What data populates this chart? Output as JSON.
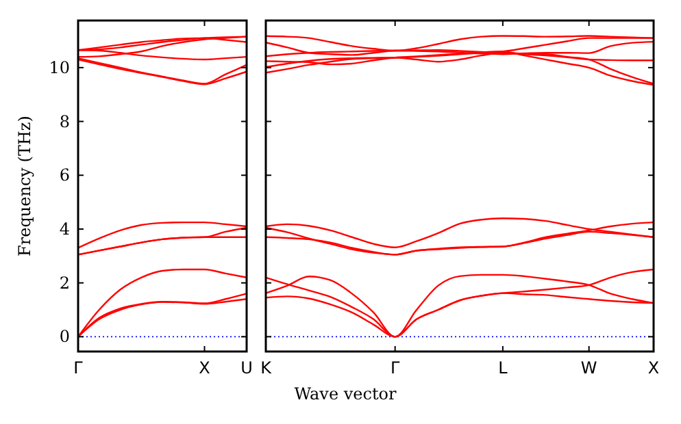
{
  "chart_data": [
    {
      "type": "line",
      "ylabel": "Frequency (THz)",
      "ylim": [
        -0.55,
        11.75
      ],
      "categories": [
        "Γ",
        null,
        null,
        null,
        null,
        null,
        "X",
        null,
        "U"
      ],
      "yticks": [
        0,
        2,
        4,
        6,
        8,
        10
      ],
      "ref_lines": [
        {
          "axis": "y",
          "value": 0,
          "color": "#0000ff",
          "line_style": "dotted"
        }
      ],
      "series": [
        {
          "color": "#ff0000",
          "values": [
            0,
            0.65,
            1.0,
            1.2,
            1.29,
            1.27,
            1.22,
            1.3,
            1.4
          ]
        },
        {
          "color": "#ff0000",
          "values": [
            0,
            0.7,
            1.05,
            1.22,
            1.3,
            1.28,
            1.24,
            1.4,
            1.6
          ]
        },
        {
          "color": "#ff0000",
          "values": [
            0,
            1.0,
            1.75,
            2.2,
            2.45,
            2.5,
            2.5,
            2.35,
            2.2
          ]
        },
        {
          "color": "#ff0000",
          "values": [
            3.05,
            3.2,
            3.35,
            3.5,
            3.62,
            3.68,
            3.7,
            3.7,
            3.7
          ]
        },
        {
          "color": "#ff0000",
          "values": [
            3.05,
            3.2,
            3.35,
            3.5,
            3.62,
            3.68,
            3.7,
            3.9,
            4.05
          ]
        },
        {
          "color": "#ff0000",
          "values": [
            3.3,
            3.65,
            3.95,
            4.15,
            4.23,
            4.25,
            4.25,
            4.18,
            4.1
          ]
        },
        {
          "color": "#ff0000",
          "values": [
            10.3,
            10.12,
            9.95,
            9.8,
            9.65,
            9.5,
            9.38,
            9.6,
            9.85
          ]
        },
        {
          "color": "#ff0000",
          "values": [
            10.35,
            10.17,
            10.0,
            9.82,
            9.67,
            9.52,
            9.4,
            9.75,
            10.1
          ]
        },
        {
          "color": "#ff0000",
          "values": [
            10.65,
            10.63,
            10.55,
            10.45,
            10.38,
            10.33,
            10.3,
            10.35,
            10.4
          ]
        },
        {
          "color": "#ff0000",
          "values": [
            10.65,
            10.68,
            10.75,
            10.85,
            10.95,
            11.03,
            11.1,
            11.03,
            10.95
          ]
        },
        {
          "color": "#ff0000",
          "values": [
            10.65,
            10.75,
            10.85,
            10.95,
            11.02,
            11.08,
            11.1,
            11.13,
            11.15
          ]
        },
        {
          "color": "#ff0000",
          "values": [
            10.4,
            10.42,
            10.5,
            10.6,
            10.8,
            10.95,
            11.05,
            11.1,
            11.15
          ]
        }
      ]
    },
    {
      "type": "line",
      "xlabel": "Wave vector",
      "ylim": [
        -0.55,
        11.75
      ],
      "tick_labels": "x",
      "categories": [
        "K",
        null,
        null,
        null,
        null,
        null,
        "Γ",
        null,
        null,
        null,
        null,
        "L",
        null,
        null,
        null,
        "W",
        null,
        null,
        "X"
      ],
      "yticks": [
        0,
        2,
        4,
        6,
        8,
        10
      ],
      "ref_lines": [
        {
          "axis": "y",
          "value": 0,
          "color": "#0000ff",
          "line_style": "dotted"
        }
      ],
      "series": [
        {
          "color": "#ff0000",
          "values": [
            1.45,
            1.5,
            1.42,
            1.2,
            0.9,
            0.45,
            0,
            0.65,
            1.0,
            1.35,
            1.52,
            1.62,
            1.68,
            1.75,
            1.83,
            1.92,
            2.2,
            2.4,
            2.5
          ]
        },
        {
          "color": "#ff0000",
          "values": [
            2.2,
            1.95,
            1.72,
            1.48,
            1.1,
            0.65,
            0,
            0.65,
            1.0,
            1.35,
            1.52,
            1.62,
            1.58,
            1.55,
            1.47,
            1.4,
            1.33,
            1.28,
            1.25
          ]
        },
        {
          "color": "#ff0000",
          "values": [
            1.62,
            1.9,
            2.24,
            2.1,
            1.6,
            0.9,
            0,
            1.0,
            1.9,
            2.25,
            2.3,
            2.3,
            2.25,
            2.15,
            2.05,
            1.92,
            1.6,
            1.4,
            1.25
          ]
        },
        {
          "color": "#ff0000",
          "values": [
            4.1,
            4.18,
            4.12,
            3.95,
            3.7,
            3.45,
            3.32,
            3.55,
            3.85,
            4.2,
            4.35,
            4.4,
            4.38,
            4.3,
            4.15,
            4.0,
            3.9,
            3.8,
            3.7
          ]
        },
        {
          "color": "#ff0000",
          "values": [
            4.05,
            3.88,
            3.65,
            3.45,
            3.25,
            3.12,
            3.05,
            3.2,
            3.27,
            3.32,
            3.34,
            3.35,
            3.5,
            3.7,
            3.83,
            3.95,
            4.1,
            4.2,
            4.25
          ]
        },
        {
          "color": "#ff0000",
          "values": [
            3.7,
            3.67,
            3.62,
            3.5,
            3.3,
            3.15,
            3.05,
            3.2,
            3.25,
            3.3,
            3.33,
            3.35,
            3.48,
            3.65,
            3.78,
            3.9,
            3.85,
            3.78,
            3.7
          ]
        },
        {
          "color": "#ff0000",
          "values": [
            9.81,
            9.95,
            10.1,
            10.22,
            10.32,
            10.35,
            10.37,
            10.42,
            10.47,
            10.52,
            10.57,
            10.6,
            10.45,
            10.3,
            10.15,
            10.0,
            9.7,
            9.5,
            9.36
          ]
        },
        {
          "color": "#ff0000",
          "values": [
            10.02,
            10.15,
            10.25,
            10.32,
            10.35,
            10.36,
            10.37,
            10.3,
            10.22,
            10.3,
            10.45,
            10.55,
            10.52,
            10.5,
            10.4,
            10.3,
            9.95,
            9.65,
            9.4
          ]
        },
        {
          "color": "#ff0000",
          "values": [
            10.24,
            10.22,
            10.2,
            10.12,
            10.15,
            10.27,
            10.37,
            10.4,
            10.44,
            10.5,
            10.55,
            10.6,
            10.72,
            10.85,
            10.98,
            11.1,
            11.1,
            11.1,
            11.1
          ]
        },
        {
          "color": "#ff0000",
          "values": [
            10.42,
            10.5,
            10.55,
            10.58,
            10.6,
            10.62,
            10.63,
            10.62,
            10.6,
            10.56,
            10.52,
            10.5,
            10.53,
            10.55,
            10.55,
            10.54,
            10.8,
            10.92,
            10.96
          ]
        },
        {
          "color": "#ff0000",
          "values": [
            10.93,
            10.75,
            10.55,
            10.5,
            10.47,
            10.55,
            10.63,
            10.64,
            10.65,
            10.62,
            10.58,
            10.55,
            10.5,
            10.45,
            10.38,
            10.3,
            10.28,
            10.27,
            10.27
          ]
        },
        {
          "color": "#ff0000",
          "values": [
            11.17,
            11.15,
            11.1,
            10.95,
            10.8,
            10.7,
            10.63,
            10.72,
            10.88,
            11.05,
            11.15,
            11.18,
            11.17,
            11.15,
            11.16,
            11.18,
            11.15,
            11.12,
            11.1
          ]
        }
      ]
    }
  ]
}
